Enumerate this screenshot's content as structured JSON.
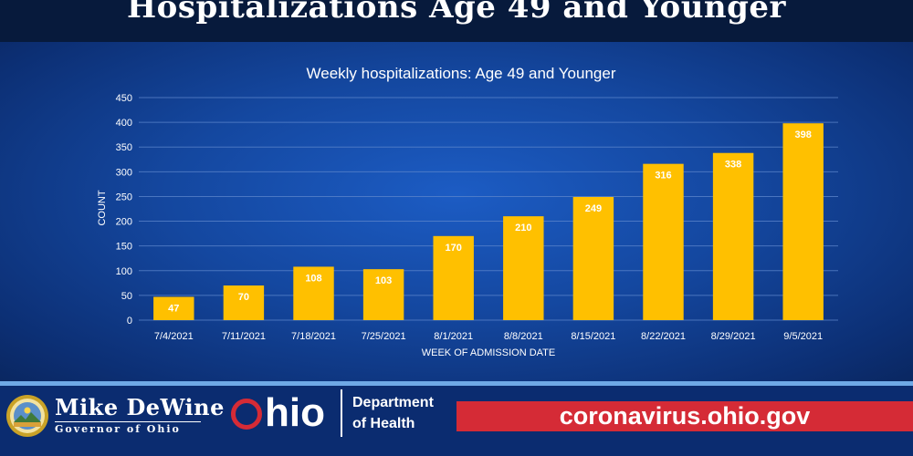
{
  "header": {
    "title": "Hospitalizations Age 49 and Younger"
  },
  "chart_data": {
    "type": "bar",
    "title": "Weekly hospitalizations: Age 49 and Younger",
    "xlabel": "WEEK OF ADMISSION DATE",
    "ylabel": "COUNT",
    "categories": [
      "7/4/2021",
      "7/11/2021",
      "7/18/2021",
      "7/25/2021",
      "8/1/2021",
      "8/8/2021",
      "8/15/2021",
      "8/22/2021",
      "8/29/2021",
      "9/5/2021"
    ],
    "values": [
      47,
      70,
      108,
      103,
      170,
      210,
      249,
      316,
      338,
      398
    ],
    "ylim": [
      0,
      450
    ],
    "yticks": [
      0,
      50,
      100,
      150,
      200,
      250,
      300,
      350,
      400,
      450
    ],
    "grid": true,
    "legend": "none",
    "bar_color": "#ffc000",
    "label_color": "#ffffff"
  },
  "footer": {
    "governor_name": "Mike DeWine",
    "governor_title": "Governor of Ohio",
    "seal_icon": "ohio-seal-icon",
    "ohio_logo_first": "O",
    "ohio_logo_rest": "hio",
    "department_line1": "Department",
    "department_line2": "of Health",
    "url": "coronavirus.ohio.gov",
    "url_bar_color": "#d52b36",
    "ohio_o_color": "#d52b36"
  }
}
